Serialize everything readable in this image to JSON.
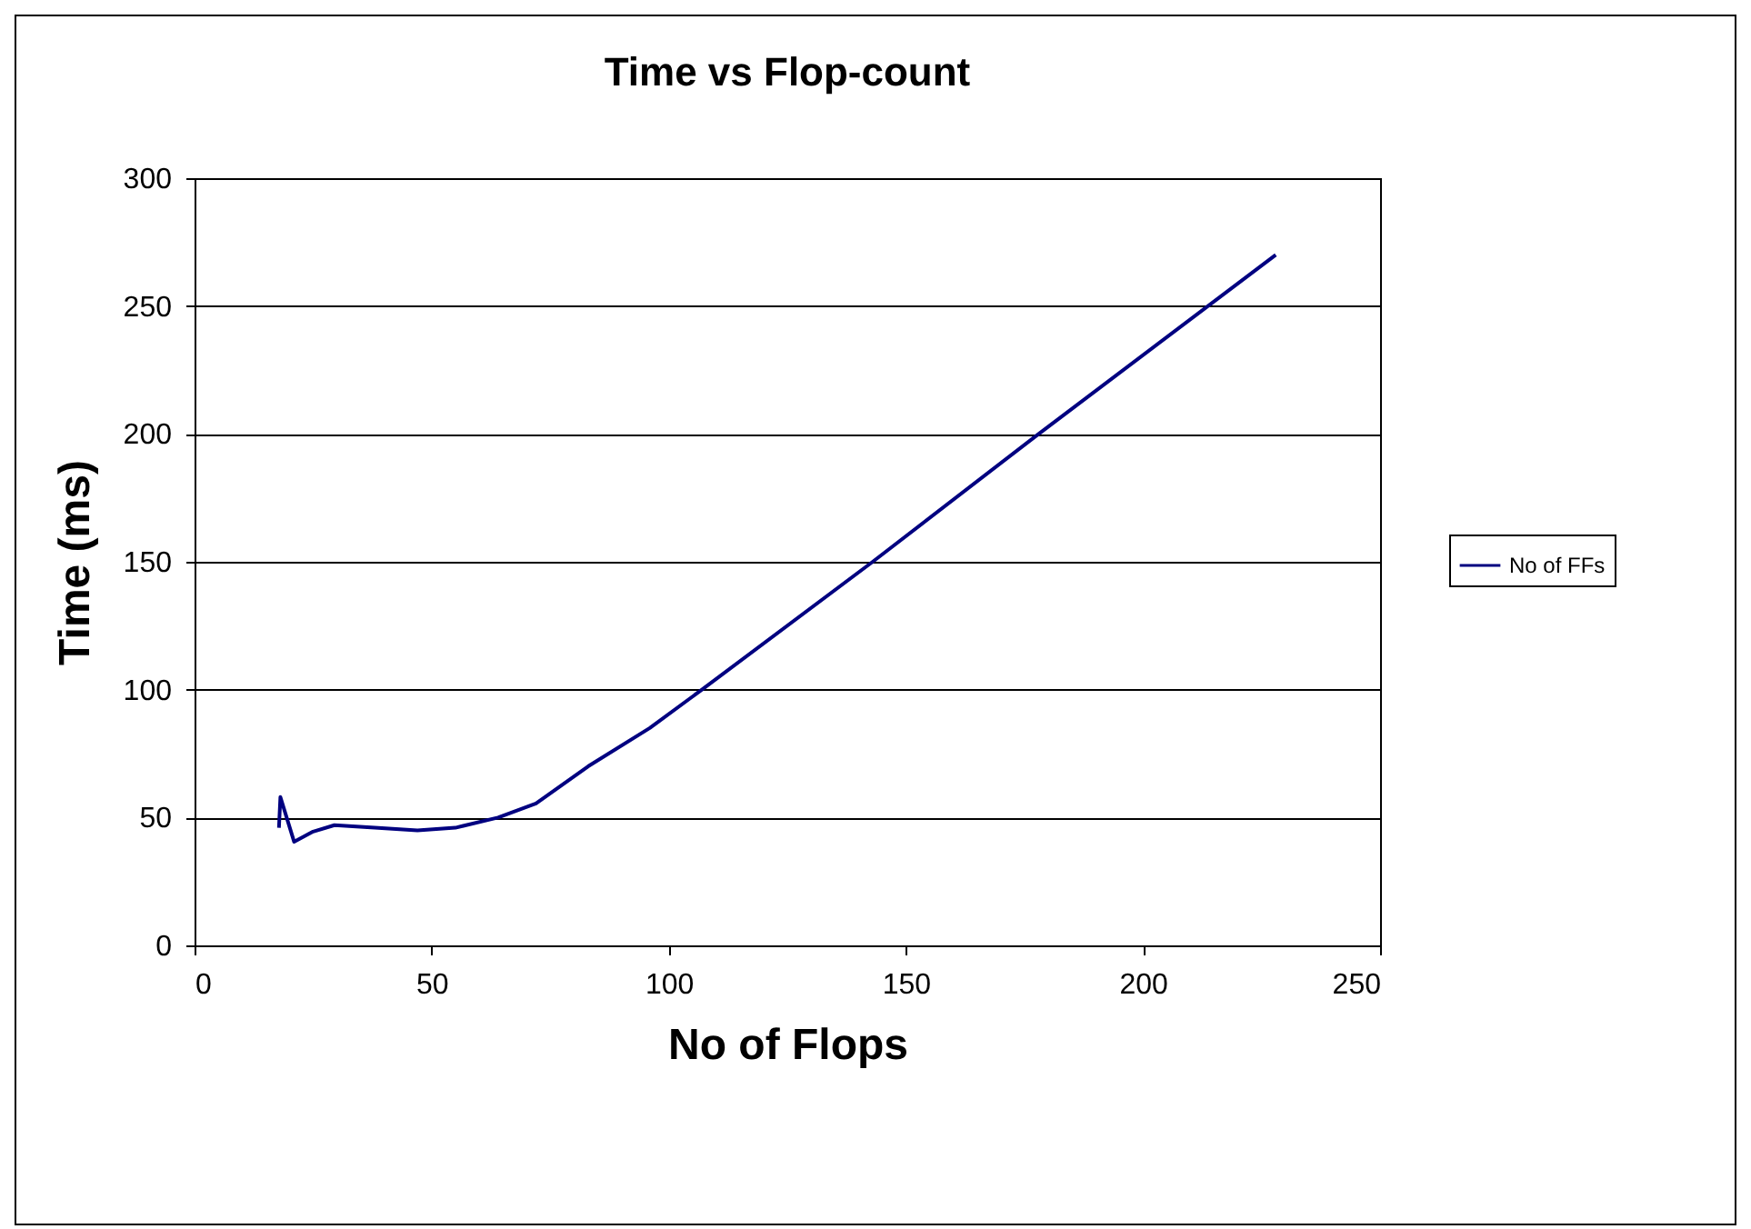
{
  "chart_data": {
    "type": "line",
    "title": "Time vs Flop-count",
    "xlabel": "No of Flops",
    "ylabel": "Time (ms)",
    "x": [
      17.8,
      18.1,
      21,
      25,
      29.5,
      38,
      47,
      55,
      64,
      72,
      83,
      96,
      107,
      143,
      178,
      228
    ],
    "series": [
      {
        "name": "No of FFs",
        "color": "#000080",
        "values": [
          46,
          58,
          40.5,
          44.5,
          47,
          46,
          45,
          46,
          50,
          55.5,
          70,
          85,
          100,
          150,
          200,
          270
        ]
      }
    ],
    "xlim": [
      0,
      250
    ],
    "xticks": [
      0,
      50,
      100,
      150,
      200,
      250
    ],
    "ylim": [
      0,
      300
    ],
    "yticks": [
      0,
      50,
      100,
      150,
      200,
      250,
      300
    ],
    "grid": "y",
    "legend": "right",
    "marker": "none",
    "line_style": "solid"
  }
}
